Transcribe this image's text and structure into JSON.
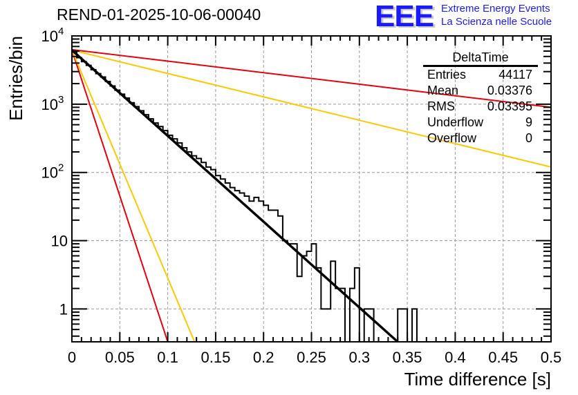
{
  "chart_data": {
    "type": "bar",
    "subtype": "histogram",
    "title": "REND-01-2025-10-06-00040",
    "xlabel": "Time difference [s]",
    "ylabel": "Entries/bin",
    "xlim": [
      0,
      0.5
    ],
    "ylim": [
      0.33,
      10000
    ],
    "yscale": "log",
    "grid": true,
    "x_ticks": [
      "0",
      "0.05",
      "0.1",
      "0.15",
      "0.2",
      "0.25",
      "0.3",
      "0.35",
      "0.4",
      "0.45",
      "0.5"
    ],
    "y_ticks": [
      "1",
      "10",
      "10^2",
      "10^3",
      "10^4"
    ],
    "bin_width": 0.005,
    "bin_counts": [
      5900,
      4800,
      4200,
      3700,
      3200,
      2800,
      2500,
      2150,
      1850,
      1600,
      1400,
      1230,
      1050,
      920,
      800,
      700,
      610,
      530,
      470,
      410,
      350,
      310,
      270,
      230,
      200,
      175,
      160,
      140,
      120,
      110,
      90,
      80,
      70,
      60,
      54,
      50,
      45,
      38,
      43,
      38,
      33,
      28,
      28,
      23,
      10,
      9,
      9,
      3,
      6,
      7,
      9,
      4,
      1,
      1,
      5,
      2,
      2,
      0,
      2,
      4,
      0,
      1,
      1,
      0,
      0,
      0,
      0,
      0,
      1,
      1,
      0,
      1,
      0,
      0,
      0,
      0,
      0,
      0,
      0,
      0,
      0,
      0,
      0,
      0,
      0,
      0,
      0,
      0,
      0,
      0,
      0,
      0,
      0,
      0,
      0,
      0,
      0,
      0,
      0,
      0
    ],
    "fit_line": {
      "name": "fit",
      "color": "#000000",
      "x": [
        0,
        0.34
      ],
      "y": [
        6200,
        0.33
      ]
    },
    "series": [
      {
        "name": "red-steep",
        "color": "#e8000b",
        "x": [
          0,
          0.1
        ],
        "y": [
          6200,
          0.33
        ]
      },
      {
        "name": "orange-steep",
        "color": "#ffc800",
        "x": [
          0,
          0.128
        ],
        "y": [
          6200,
          0.33
        ]
      },
      {
        "name": "orange-shallow",
        "color": "#ffc800",
        "x": [
          0,
          0.5
        ],
        "y": [
          6200,
          120
        ]
      },
      {
        "name": "red-shallow",
        "color": "#e8000b",
        "x": [
          0,
          0.5
        ],
        "y": [
          6300,
          900
        ]
      }
    ],
    "stats_box": {
      "title": "DeltaTime",
      "rows": [
        {
          "label": "Entries",
          "value": "44117"
        },
        {
          "label": "Mean",
          "value": "0.03376"
        },
        {
          "label": "RMS",
          "value": "0.03395"
        },
        {
          "label": "Underflow",
          "value": "9"
        },
        {
          "label": "Overflow",
          "value": "0"
        }
      ],
      "position": "top-right"
    }
  },
  "logo": {
    "text": "EEE",
    "line1": "Extreme Energy Events",
    "line2": "La Scienza nelle Scuole"
  }
}
